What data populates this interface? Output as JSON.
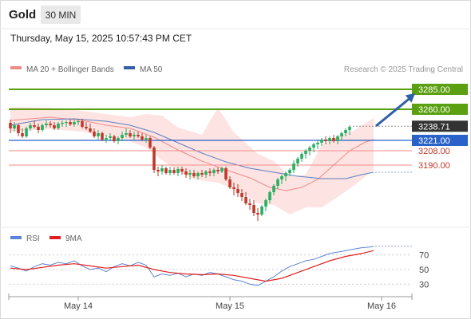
{
  "header": {
    "symbol": "Gold",
    "timeframe": "30 MIN",
    "datetime": "Thursday, May 15, 2025 10:57:43 PM CET"
  },
  "legend": {
    "ma20_label": "MA 20 + Bollinger Bands",
    "ma50_label": "MA 50",
    "copyright": "Research © 2025 Trading Central"
  },
  "colors": {
    "up": "#27ae60",
    "down": "#c0392b",
    "ma50": "#5b7fc0",
    "ma20": "#f08a8a",
    "band_fill": "#fde0de",
    "resistance": "#5aa010",
    "pivot": "#2962c8",
    "support": "#f28b8b",
    "rsi": "#5b84d6",
    "rsi_ma": "#e02020",
    "arrow": "#2f5fa8",
    "last_price_bg": "#333333"
  },
  "chart_data": [
    {
      "type": "candlestick",
      "title": "Gold",
      "ylim": [
        3117,
        3297
      ],
      "x_ticks": [
        "May 14",
        "May 15",
        "May 16"
      ],
      "x_tick_positions": [
        17,
        55,
        93
      ],
      "levels": [
        {
          "value": 3285.0,
          "label": "3285.00",
          "kind": "resistance"
        },
        {
          "value": 3260.0,
          "label": "3260.00",
          "kind": "resistance"
        },
        {
          "value": 3238.71,
          "label": "3238.71",
          "kind": "last"
        },
        {
          "value": 3221.0,
          "label": "3221.00",
          "kind": "pivot"
        },
        {
          "value": 3208.0,
          "label": "3208.00",
          "kind": "support"
        },
        {
          "value": 3190.0,
          "label": "3190.00",
          "kind": "support"
        }
      ],
      "projection": {
        "from": [
          91,
          3239
        ],
        "to": [
          99,
          3280
        ]
      },
      "ma50": [
        [
          0,
          3240
        ],
        [
          8,
          3247
        ],
        [
          16,
          3248
        ],
        [
          24,
          3245
        ],
        [
          30,
          3240
        ],
        [
          36,
          3231
        ],
        [
          42,
          3218
        ],
        [
          48,
          3205
        ],
        [
          54,
          3194
        ],
        [
          60,
          3186
        ],
        [
          66,
          3181
        ],
        [
          72,
          3176
        ],
        [
          78,
          3173
        ],
        [
          84,
          3173
        ],
        [
          88,
          3178
        ],
        [
          91,
          3181
        ]
      ],
      "ma20": [
        [
          0,
          3246
        ],
        [
          10,
          3250
        ],
        [
          18,
          3246
        ],
        [
          24,
          3240
        ],
        [
          30,
          3236
        ],
        [
          36,
          3225
        ],
        [
          42,
          3209
        ],
        [
          48,
          3195
        ],
        [
          54,
          3184
        ],
        [
          60,
          3174
        ],
        [
          65,
          3162
        ],
        [
          69,
          3158
        ],
        [
          73,
          3162
        ],
        [
          77,
          3172
        ],
        [
          81,
          3190
        ],
        [
          85,
          3208
        ],
        [
          89,
          3219
        ],
        [
          91,
          3222
        ]
      ],
      "bb_upper": [
        [
          0,
          3263
        ],
        [
          10,
          3262
        ],
        [
          18,
          3258
        ],
        [
          24,
          3254
        ],
        [
          30,
          3250
        ],
        [
          34,
          3254
        ],
        [
          38,
          3252
        ],
        [
          42,
          3237
        ],
        [
          48,
          3228
        ],
        [
          52,
          3262
        ],
        [
          56,
          3231
        ],
        [
          62,
          3204
        ],
        [
          66,
          3195
        ],
        [
          70,
          3176
        ],
        [
          74,
          3178
        ],
        [
          78,
          3215
        ],
        [
          82,
          3226
        ],
        [
          86,
          3233
        ],
        [
          90,
          3246
        ],
        [
          91,
          3249
        ]
      ],
      "bb_lower": [
        [
          0,
          3232
        ],
        [
          10,
          3235
        ],
        [
          18,
          3232
        ],
        [
          24,
          3226
        ],
        [
          30,
          3220
        ],
        [
          34,
          3212
        ],
        [
          38,
          3196
        ],
        [
          42,
          3183
        ],
        [
          46,
          3172
        ],
        [
          52,
          3168
        ],
        [
          58,
          3156
        ],
        [
          62,
          3142
        ],
        [
          66,
          3140
        ],
        [
          70,
          3128
        ],
        [
          74,
          3137
        ],
        [
          78,
          3137
        ],
        [
          82,
          3150
        ],
        [
          86,
          3164
        ],
        [
          90,
          3180
        ],
        [
          91,
          3183
        ]
      ],
      "candles": [
        [
          3243,
          3247,
          3230,
          3236
        ],
        [
          3236,
          3244,
          3232,
          3240
        ],
        [
          3240,
          3242,
          3226,
          3230
        ],
        [
          3230,
          3236,
          3224,
          3226
        ],
        [
          3226,
          3238,
          3224,
          3236
        ],
        [
          3236,
          3243,
          3233,
          3240
        ],
        [
          3240,
          3246,
          3236,
          3238
        ],
        [
          3238,
          3242,
          3230,
          3234
        ],
        [
          3234,
          3242,
          3232,
          3240
        ],
        [
          3240,
          3246,
          3237,
          3242
        ],
        [
          3242,
          3245,
          3237,
          3240
        ],
        [
          3240,
          3244,
          3234,
          3236
        ],
        [
          3236,
          3244,
          3234,
          3242
        ],
        [
          3242,
          3246,
          3238,
          3243
        ],
        [
          3243,
          3246,
          3238,
          3244
        ],
        [
          3244,
          3247,
          3239,
          3241
        ],
        [
          3241,
          3246,
          3238,
          3244
        ],
        [
          3244,
          3248,
          3240,
          3245
        ],
        [
          3245,
          3248,
          3236,
          3238
        ],
        [
          3238,
          3244,
          3234,
          3236
        ],
        [
          3236,
          3242,
          3230,
          3232
        ],
        [
          3232,
          3236,
          3224,
          3226
        ],
        [
          3226,
          3234,
          3222,
          3230
        ],
        [
          3230,
          3232,
          3220,
          3222
        ],
        [
          3222,
          3228,
          3218,
          3224
        ],
        [
          3224,
          3230,
          3220,
          3226
        ],
        [
          3226,
          3228,
          3218,
          3220
        ],
        [
          3220,
          3226,
          3216,
          3224
        ],
        [
          3224,
          3232,
          3220,
          3228
        ],
        [
          3228,
          3236,
          3225,
          3230
        ],
        [
          3230,
          3234,
          3224,
          3226
        ],
        [
          3226,
          3232,
          3222,
          3228
        ],
        [
          3228,
          3232,
          3224,
          3226
        ],
        [
          3226,
          3230,
          3220,
          3222
        ],
        [
          3222,
          3228,
          3218,
          3224
        ],
        [
          3224,
          3226,
          3210,
          3212
        ],
        [
          3212,
          3214,
          3180,
          3184
        ],
        [
          3184,
          3188,
          3176,
          3182
        ],
        [
          3182,
          3190,
          3178,
          3186
        ],
        [
          3186,
          3188,
          3178,
          3180
        ],
        [
          3180,
          3188,
          3177,
          3184
        ],
        [
          3184,
          3187,
          3178,
          3180
        ],
        [
          3180,
          3188,
          3176,
          3185
        ],
        [
          3185,
          3188,
          3178,
          3182
        ],
        [
          3182,
          3186,
          3174,
          3178
        ],
        [
          3178,
          3184,
          3172,
          3180
        ],
        [
          3180,
          3184,
          3174,
          3176
        ],
        [
          3176,
          3182,
          3172,
          3180
        ],
        [
          3180,
          3184,
          3175,
          3178
        ],
        [
          3178,
          3184,
          3174,
          3182
        ],
        [
          3182,
          3186,
          3176,
          3180
        ],
        [
          3180,
          3186,
          3176,
          3184
        ],
        [
          3184,
          3187,
          3179,
          3182
        ],
        [
          3182,
          3188,
          3180,
          3186
        ],
        [
          3186,
          3188,
          3170,
          3172
        ],
        [
          3172,
          3176,
          3160,
          3162
        ],
        [
          3162,
          3168,
          3152,
          3160
        ],
        [
          3160,
          3166,
          3150,
          3155
        ],
        [
          3155,
          3160,
          3145,
          3150
        ],
        [
          3150,
          3156,
          3140,
          3142
        ],
        [
          3142,
          3148,
          3134,
          3140
        ],
        [
          3140,
          3146,
          3126,
          3130
        ],
        [
          3130,
          3136,
          3120,
          3128
        ],
        [
          3128,
          3140,
          3126,
          3138
        ],
        [
          3138,
          3148,
          3132,
          3146
        ],
        [
          3146,
          3158,
          3142,
          3156
        ],
        [
          3156,
          3166,
          3152,
          3164
        ],
        [
          3164,
          3174,
          3160,
          3172
        ],
        [
          3172,
          3178,
          3166,
          3176
        ],
        [
          3176,
          3182,
          3170,
          3180
        ],
        [
          3180,
          3186,
          3176,
          3184
        ],
        [
          3184,
          3196,
          3180,
          3192
        ],
        [
          3192,
          3200,
          3188,
          3198
        ],
        [
          3198,
          3206,
          3194,
          3204
        ],
        [
          3204,
          3210,
          3198,
          3208
        ],
        [
          3208,
          3214,
          3202,
          3212
        ],
        [
          3212,
          3218,
          3206,
          3216
        ],
        [
          3216,
          3222,
          3210,
          3218
        ],
        [
          3218,
          3224,
          3214,
          3222
        ],
        [
          3222,
          3226,
          3216,
          3220
        ],
        [
          3220,
          3226,
          3216,
          3224
        ],
        [
          3224,
          3228,
          3218,
          3220
        ],
        [
          3220,
          3228,
          3216,
          3226
        ],
        [
          3226,
          3232,
          3222,
          3230
        ],
        [
          3230,
          3236,
          3226,
          3234
        ],
        [
          3234,
          3240,
          3228,
          3238
        ]
      ]
    },
    {
      "type": "line",
      "title": "RSI",
      "ylim": [
        15,
        85
      ],
      "y_ticks": [
        70,
        50,
        30
      ],
      "series": [
        {
          "name": "RSI",
          "values": [
            [
              0,
              55
            ],
            [
              2,
              52
            ],
            [
              4,
              48
            ],
            [
              6,
              54
            ],
            [
              8,
              58
            ],
            [
              10,
              56
            ],
            [
              12,
              60
            ],
            [
              14,
              58
            ],
            [
              16,
              62
            ],
            [
              18,
              55
            ],
            [
              20,
              50
            ],
            [
              22,
              52
            ],
            [
              24,
              47
            ],
            [
              26,
              54
            ],
            [
              28,
              58
            ],
            [
              30,
              55
            ],
            [
              32,
              60
            ],
            [
              34,
              56
            ],
            [
              36,
              40
            ],
            [
              38,
              44
            ],
            [
              40,
              42
            ],
            [
              42,
              45
            ],
            [
              44,
              40
            ],
            [
              46,
              44
            ],
            [
              48,
              42
            ],
            [
              50,
              46
            ],
            [
              52,
              44
            ],
            [
              54,
              40
            ],
            [
              56,
              36
            ],
            [
              58,
              34
            ],
            [
              60,
              30
            ],
            [
              62,
              28
            ],
            [
              64,
              34
            ],
            [
              66,
              40
            ],
            [
              68,
              48
            ],
            [
              70,
              54
            ],
            [
              72,
              58
            ],
            [
              74,
              62
            ],
            [
              76,
              64
            ],
            [
              78,
              68
            ],
            [
              80,
              72
            ],
            [
              82,
              74
            ],
            [
              84,
              76
            ],
            [
              86,
              78
            ],
            [
              88,
              80
            ],
            [
              90,
              81
            ],
            [
              91,
              82
            ]
          ]
        },
        {
          "name": "9MA",
          "values": [
            [
              0,
              52
            ],
            [
              4,
              50
            ],
            [
              8,
              53
            ],
            [
              12,
              56
            ],
            [
              16,
              58
            ],
            [
              20,
              55
            ],
            [
              24,
              52
            ],
            [
              28,
              54
            ],
            [
              32,
              56
            ],
            [
              36,
              50
            ],
            [
              40,
              46
            ],
            [
              44,
              44
            ],
            [
              48,
              43
            ],
            [
              52,
              44
            ],
            [
              56,
              42
            ],
            [
              60,
              38
            ],
            [
              64,
              34
            ],
            [
              68,
              38
            ],
            [
              72,
              46
            ],
            [
              76,
              54
            ],
            [
              80,
              62
            ],
            [
              84,
              68
            ],
            [
              88,
              72
            ],
            [
              91,
              76
            ]
          ]
        }
      ]
    }
  ]
}
